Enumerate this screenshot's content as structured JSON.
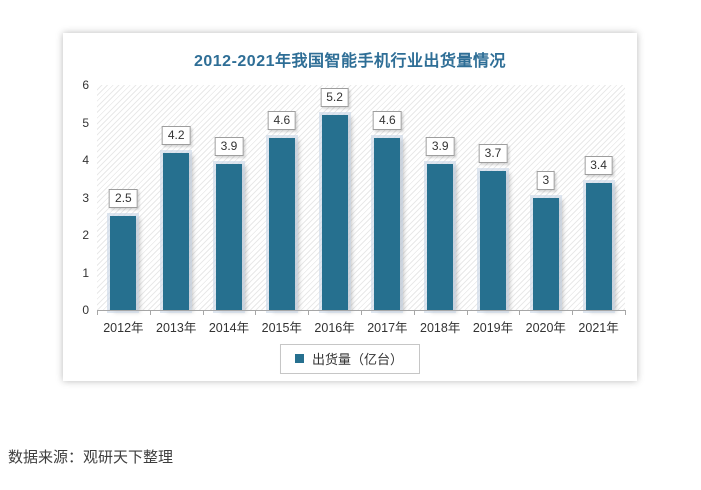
{
  "page": {
    "source_text": "数据来源：观研天下整理"
  },
  "chart_data": {
    "type": "bar",
    "title": "2012-2021年我国智能手机行业出货量情况",
    "categories": [
      "2012年",
      "2013年",
      "2014年",
      "2015年",
      "2016年",
      "2017年",
      "2018年",
      "2019年",
      "2020年",
      "2021年"
    ],
    "series": [
      {
        "name": "出货量（亿台）",
        "values": [
          2.5,
          4.2,
          3.9,
          4.6,
          5.2,
          4.6,
          3.9,
          3.7,
          3,
          3.4
        ]
      }
    ],
    "ylim": [
      0,
      6
    ],
    "y_ticks": [
      0,
      1,
      2,
      3,
      4,
      5,
      6
    ],
    "xlabel": "",
    "ylabel": "",
    "grid": false,
    "plot_background": "diagonal-hatch",
    "legend": {
      "position": "bottom",
      "entries": [
        "出货量（亿台）"
      ]
    },
    "colors": {
      "bar": "#26708f",
      "bar_glow": "#ccd9e8",
      "title": "#2e6e96",
      "axis": "#a6a6a6",
      "text": "#333333"
    }
  }
}
